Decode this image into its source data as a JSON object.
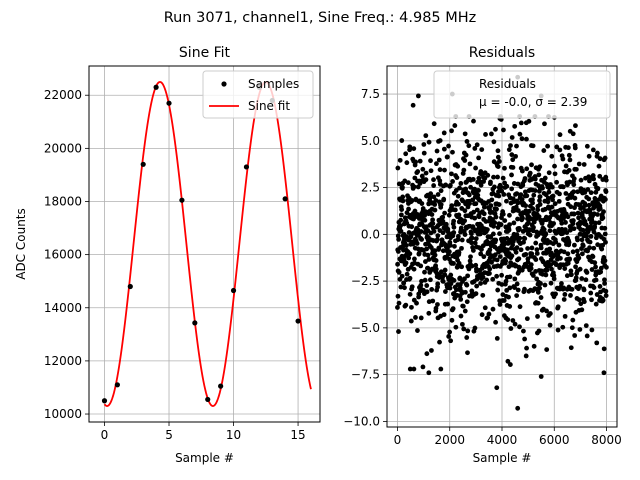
{
  "figure": {
    "suptitle": "Run 3071, channel1, Sine Freq.: 4.985 MHz"
  },
  "chart_data": [
    {
      "type": "line",
      "title": "Sine Fit",
      "xlabel": "Sample #",
      "ylabel": "ADC Counts",
      "xlim": [
        -1.2,
        16.7
      ],
      "ylim": [
        9700,
        23100
      ],
      "xticks": [
        0,
        5,
        10,
        15
      ],
      "yticks": [
        10000,
        12000,
        14000,
        16000,
        18000,
        20000,
        22000
      ],
      "grid": true,
      "legend_position": "top-right",
      "series": [
        {
          "name": "Samples",
          "kind": "scatter",
          "color": "#000000",
          "x": [
            0,
            1,
            2,
            3,
            4,
            5,
            6,
            7,
            8,
            9,
            10,
            11,
            12,
            13,
            14,
            15
          ],
          "y": [
            10500,
            11100,
            14800,
            19400,
            22300,
            21700,
            18050,
            13430,
            10550,
            11050,
            14650,
            19300,
            22300,
            21800,
            18100,
            13500
          ]
        },
        {
          "name": "Sine fit",
          "kind": "line",
          "color": "#ff0000",
          "x_range": [
            0,
            16
          ],
          "offset": 16400,
          "amplitude": 6100,
          "period": 8.2,
          "peak_x": 4.3
        }
      ]
    },
    {
      "type": "scatter",
      "title": "Residuals",
      "xlabel": "Sample #",
      "ylabel": "",
      "xlim": [
        -400,
        8400
      ],
      "ylim": [
        -10.3,
        9.0
      ],
      "xticks": [
        0,
        2000,
        4000,
        6000,
        8000
      ],
      "yticks": [
        -10.0,
        -7.5,
        -5.0,
        -2.5,
        0.0,
        2.5,
        5.0,
        7.5
      ],
      "grid": true,
      "legend_position": "top-right",
      "series": [
        {
          "name": "Residuals",
          "kind": "scatter",
          "color": "#000000",
          "n_points": 8000,
          "mean": -0.0,
          "std": 2.39,
          "visible_extremes": [
            {
              "x": 600,
              "y": 6.9
            },
            {
              "x": 800,
              "y": 7.4
            },
            {
              "x": 2100,
              "y": 7.5
            },
            {
              "x": 5500,
              "y": 7.4
            },
            {
              "x": 4600,
              "y": 8.4
            },
            {
              "x": 1200,
              "y": -7.4
            },
            {
              "x": 3800,
              "y": -8.2
            },
            {
              "x": 4600,
              "y": -9.3
            },
            {
              "x": 5500,
              "y": -7.6
            },
            {
              "x": 7900,
              "y": -7.4
            }
          ]
        }
      ],
      "legend_text": {
        "title": "Residuals",
        "stats": "μ = -0.0, σ = 2.39"
      }
    }
  ]
}
